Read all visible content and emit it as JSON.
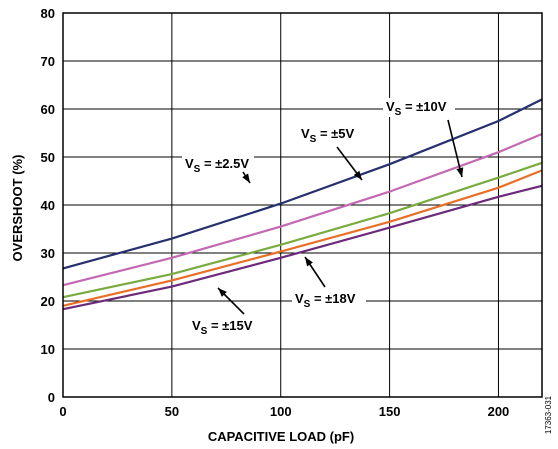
{
  "chart_data": {
    "type": "line",
    "xlabel": "CAPACITIVE LOAD (pF)",
    "ylabel": "OVERSHOOT (%)",
    "xlim": [
      0,
      220
    ],
    "ylim": [
      0,
      80
    ],
    "xticks": [
      0,
      50,
      100,
      150,
      200
    ],
    "yticks": [
      0,
      10,
      20,
      30,
      40,
      50,
      60,
      70,
      80
    ],
    "grid": true,
    "series": [
      {
        "name": "VS = ±2.5V",
        "color": "#26306e",
        "x": [
          0,
          50,
          100,
          150,
          200,
          220
        ],
        "y": [
          26.8,
          33,
          40.3,
          48.5,
          57.5,
          62
        ]
      },
      {
        "name": "VS = ±5V",
        "color": "#c468b3",
        "x": [
          0,
          50,
          100,
          150,
          200,
          220
        ],
        "y": [
          23.3,
          29,
          35.5,
          42.8,
          51,
          54.8
        ]
      },
      {
        "name": "VS = ±10V",
        "color": "#79ab3f",
        "x": [
          0,
          50,
          100,
          150,
          200,
          220
        ],
        "y": [
          20.8,
          25.6,
          31.7,
          38.3,
          45.7,
          48.8
        ]
      },
      {
        "name": "VS = ±15V",
        "color": "#ea6f26",
        "x": [
          0,
          50,
          100,
          150,
          200,
          220
        ],
        "y": [
          19,
          24.3,
          30.3,
          36.5,
          43.6,
          47.2
        ]
      },
      {
        "name": "VS = ±18V",
        "color": "#6d2a7b",
        "x": [
          0,
          50,
          100,
          150,
          200,
          220
        ],
        "y": [
          18.3,
          23,
          29,
          35.3,
          41.7,
          44
        ]
      }
    ],
    "annotations": [
      {
        "text": "V",
        "sub": "S",
        "rest": " = ±2.5V"
      },
      {
        "text": "V",
        "sub": "S",
        "rest": " = ±5V"
      },
      {
        "text": "V",
        "sub": "S",
        "rest": " = ±10V"
      },
      {
        "text": "V",
        "sub": "S",
        "rest": " = ±15V"
      },
      {
        "text": "V",
        "sub": "S",
        "rest": " = ±18V"
      }
    ],
    "figure_id": "17363-031"
  }
}
